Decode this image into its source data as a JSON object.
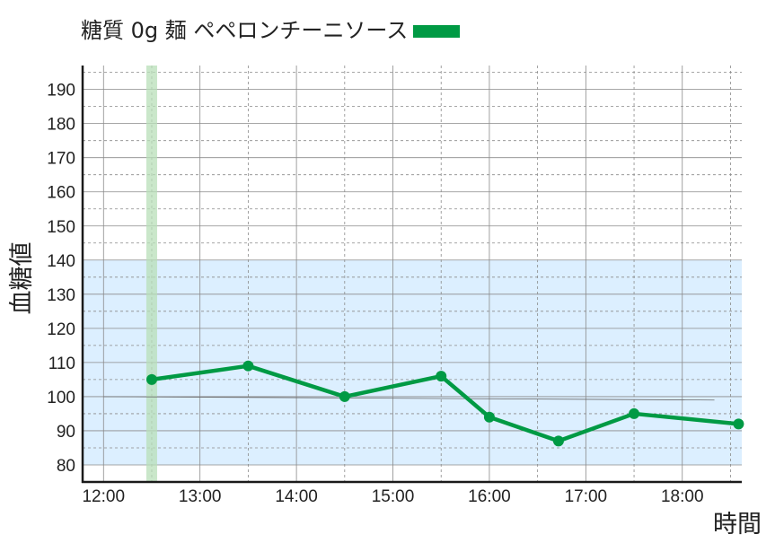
{
  "chart_data": {
    "type": "line",
    "title": "糖質 0g 麺 ペペロンチーニソース",
    "xlabel": "時間",
    "ylabel": "血糖値",
    "x_ticks": [
      "12:00",
      "13:00",
      "14:00",
      "15:00",
      "16:00",
      "17:00",
      "18:00"
    ],
    "y_ticks": [
      80,
      90,
      100,
      110,
      120,
      130,
      140,
      150,
      160,
      170,
      180,
      190
    ],
    "xlim": [
      "11:47",
      "18:37"
    ],
    "ylim": [
      75,
      197
    ],
    "series": [
      {
        "name": "糖質 0g 麺 ペペロンチーニソース",
        "color": "#009a44",
        "points": [
          {
            "x": "12:30",
            "y": 105
          },
          {
            "x": "13:30",
            "y": 109
          },
          {
            "x": "14:30",
            "y": 100
          },
          {
            "x": "15:30",
            "y": 106
          },
          {
            "x": "16:00",
            "y": 94
          },
          {
            "x": "16:43",
            "y": 87
          },
          {
            "x": "17:30",
            "y": 95
          },
          {
            "x": "18:35",
            "y": 92
          }
        ]
      }
    ],
    "target_range": {
      "from": 80,
      "to": 140,
      "color": "#dcefff"
    },
    "meal_marker": {
      "time": "12:30",
      "color": "#b8dfb8"
    },
    "reference_line": {
      "from": {
        "x": "12:00",
        "y": 100
      },
      "to": {
        "x": "18:20",
        "y": 99
      }
    },
    "grid": true,
    "legend_position": "top"
  }
}
